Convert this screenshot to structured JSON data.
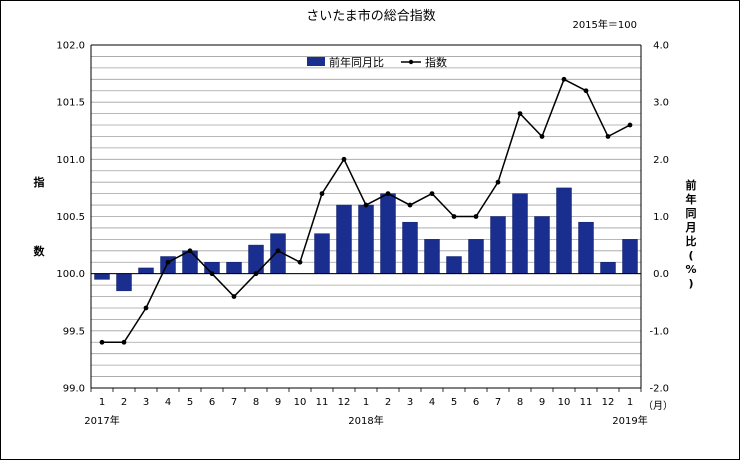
{
  "chart_data": {
    "type": "bar+line",
    "title": "さいたま市の総合指数",
    "base_note": "2015年＝100",
    "categories": [
      "1",
      "2",
      "3",
      "4",
      "5",
      "6",
      "7",
      "8",
      "9",
      "10",
      "11",
      "12",
      "1",
      "2",
      "3",
      "4",
      "5",
      "6",
      "7",
      "8",
      "9",
      "10",
      "11",
      "12",
      "1"
    ],
    "x_unit": "（月）",
    "year_labels": [
      {
        "label": "2017年",
        "at_index": 0
      },
      {
        "label": "2018年",
        "at_index": 12
      },
      {
        "label": "2019年",
        "at_index": 24
      }
    ],
    "left_axis": {
      "label_chars": [
        "指",
        "数"
      ],
      "ylim": [
        99.0,
        102.0
      ],
      "ticks": [
        "99.0",
        "99.5",
        "100.0",
        "100.5",
        "101.0",
        "101.5",
        "102.0"
      ]
    },
    "right_axis": {
      "label_chars": [
        "前",
        "年",
        "同",
        "月",
        "比",
        "(",
        "%",
        ")"
      ],
      "ylim": [
        -2.0,
        4.0
      ],
      "ticks": [
        "-2.0",
        "-1.0",
        "0.0",
        "1.0",
        "2.0",
        "3.0",
        "4.0"
      ]
    },
    "legend": {
      "placement": "top-center",
      "bar_label": "前年同月比",
      "line_label": "指数"
    },
    "series": [
      {
        "name": "前年同月比",
        "kind": "bar",
        "axis": "right",
        "color": "#1a2e8f",
        "values": [
          -0.1,
          -0.3,
          0.1,
          0.3,
          0.4,
          0.2,
          0.2,
          0.5,
          0.7,
          0.0,
          0.7,
          1.2,
          1.2,
          1.4,
          0.9,
          0.6,
          0.3,
          0.6,
          1.0,
          1.4,
          1.0,
          1.5,
          0.9,
          0.2,
          0.6
        ]
      },
      {
        "name": "指数",
        "kind": "line",
        "axis": "left",
        "color": "#000000",
        "values": [
          99.4,
          99.4,
          99.7,
          100.1,
          100.2,
          100.0,
          99.8,
          100.0,
          100.2,
          100.1,
          100.7,
          101.0,
          100.6,
          100.7,
          100.6,
          100.7,
          100.5,
          100.5,
          100.8,
          101.4,
          101.2,
          101.7,
          101.6,
          101.2,
          101.3
        ]
      }
    ]
  }
}
